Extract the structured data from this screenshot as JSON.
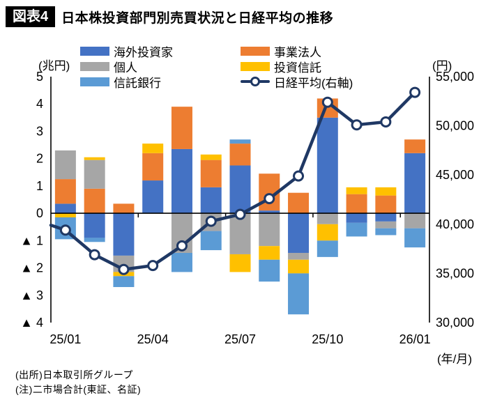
{
  "header": {
    "badge": "図表4",
    "title": "日本株投資部門別売買状況と日経平均の推移"
  },
  "axes": {
    "left_unit": "(兆円)",
    "right_unit": "(円)",
    "x_unit": "(年/月)",
    "left_tick_labels": [
      "5",
      "4",
      "3",
      "2",
      "1",
      "0",
      "▲ 1",
      "▲ 2",
      "▲ 3",
      "▲ 4"
    ],
    "right_tick_labels": [
      "55,000",
      "50,000",
      "45,000",
      "40,000",
      "35,000",
      "30,000"
    ]
  },
  "legend": {
    "col1": [
      {
        "label": "海外投資家",
        "color": "#4472C4"
      },
      {
        "label": "個人",
        "color": "#A6A6A6"
      },
      {
        "label": "信託銀行",
        "color": "#5B9BD5"
      }
    ],
    "col2": [
      {
        "label": "事業法人",
        "color": "#ED7D31"
      },
      {
        "label": "投資信託",
        "color": "#FFC000"
      },
      {
        "label": "日経平均(右軸)",
        "type": "line",
        "color": "#1F3864"
      }
    ]
  },
  "footnotes": [
    "(出所)日本取引所グループ",
    "(注)二市場合計(東証、名証)"
  ],
  "chart_data": {
    "type": "bar",
    "subtype": "stacked-bar-with-line",
    "title": "日本株投資部門別売買状況と日経平均の推移",
    "categories": [
      "25/01",
      "25/02",
      "25/03",
      "25/04",
      "25/05",
      "25/06",
      "25/07",
      "25/08",
      "25/09",
      "25/10",
      "25/11",
      "25/12",
      "26/01"
    ],
    "x_tick_labels": [
      "25/01",
      "25/04",
      "25/07",
      "25/10",
      "26/01"
    ],
    "xlabel": "(年/月)",
    "grid": false,
    "legend_position": "top",
    "bar_series": [
      {
        "name": "海外投資家",
        "color": "#4472C4",
        "values": [
          0.35,
          -0.9,
          -1.55,
          1.2,
          2.35,
          0.95,
          1.75,
          0.1,
          -1.45,
          3.5,
          -0.35,
          -0.3,
          2.2
        ]
      },
      {
        "name": "事業法人",
        "color": "#ED7D31",
        "values": [
          0.9,
          0.9,
          0.35,
          1.0,
          1.55,
          1.0,
          0.8,
          1.35,
          0.75,
          0.7,
          0.7,
          0.65,
          0.5
        ]
      },
      {
        "name": "個人",
        "color": "#A6A6A6",
        "values": [
          1.05,
          1.05,
          -0.6,
          0,
          -1.45,
          -0.65,
          -1.5,
          -1.2,
          -0.25,
          -0.4,
          0,
          -0.25,
          -0.55
        ]
      },
      {
        "name": "投資信託",
        "color": "#FFC000",
        "values": [
          -0.15,
          0.1,
          -0.15,
          0.35,
          0,
          0.2,
          -0.65,
          -0.5,
          -0.5,
          -0.6,
          0.25,
          0.3,
          0
        ]
      },
      {
        "name": "信託銀行",
        "color": "#5B9BD5",
        "values": [
          -0.8,
          -0.15,
          -0.4,
          0,
          -0.7,
          -0.7,
          0.15,
          -0.8,
          -1.5,
          -0.6,
          -0.5,
          -0.25,
          -0.7
        ]
      }
    ],
    "line_series": {
      "name": "日経平均(右軸)",
      "color": "#1F3864",
      "axis": "right",
      "values": [
        39400,
        36900,
        35400,
        35800,
        37800,
        40300,
        41000,
        42600,
        44900,
        52400,
        50100,
        50400,
        53400
      ],
      "lead_in_value": 39900
    },
    "left_axis": {
      "unit": "(兆円)",
      "min": -4,
      "max": 5,
      "tick_step": 1,
      "negative_prefix": "▲ "
    },
    "right_axis": {
      "unit": "(円)",
      "min": 30000,
      "max": 55000,
      "tick_step": 5000
    }
  }
}
